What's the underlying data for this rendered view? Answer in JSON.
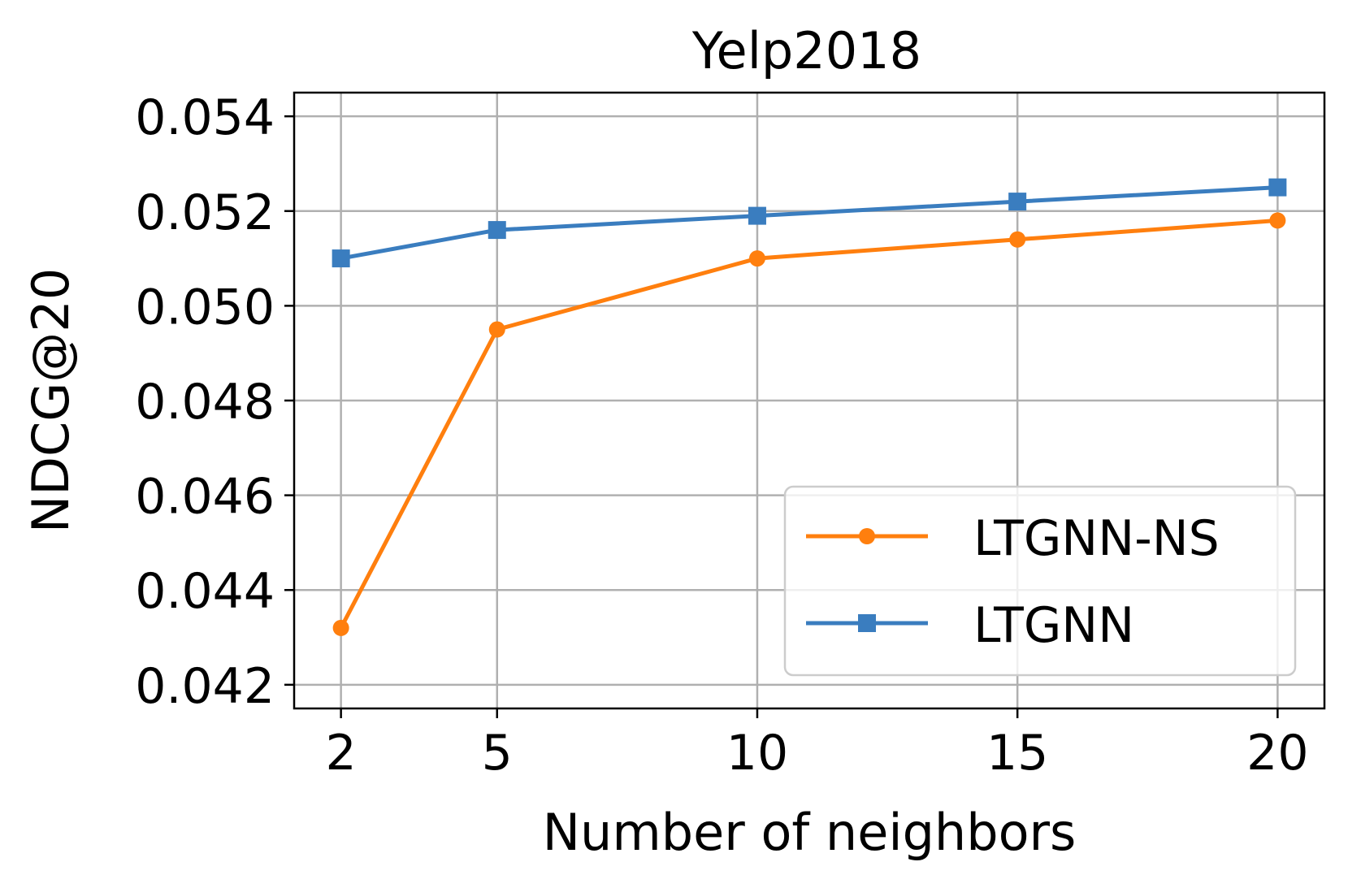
{
  "chart_data": {
    "type": "line",
    "title": "Yelp2018",
    "xlabel": "Number of neighbors",
    "ylabel": "NDCG@20",
    "x": [
      2,
      5,
      10,
      15,
      20
    ],
    "x_tick_labels": [
      "2",
      "5",
      "10",
      "15",
      "20"
    ],
    "y_ticks": [
      0.042,
      0.044,
      0.046,
      0.048,
      0.05,
      0.052,
      0.054
    ],
    "y_tick_labels": [
      "0.042",
      "0.044",
      "0.046",
      "0.048",
      "0.050",
      "0.052",
      "0.054"
    ],
    "xlim": [
      1.1,
      20.9
    ],
    "ylim": [
      0.0415,
      0.0545
    ],
    "grid": true,
    "legend_position": "lower-right",
    "series": [
      {
        "name": "LTGNN-NS",
        "color": "#ff7f0e",
        "marker": "circle",
        "values": [
          0.0432,
          0.0495,
          0.051,
          0.0514,
          0.0518
        ]
      },
      {
        "name": "LTGNN",
        "color": "#3a7dbf",
        "marker": "square",
        "values": [
          0.051,
          0.0516,
          0.0519,
          0.0522,
          0.0525
        ]
      }
    ]
  }
}
